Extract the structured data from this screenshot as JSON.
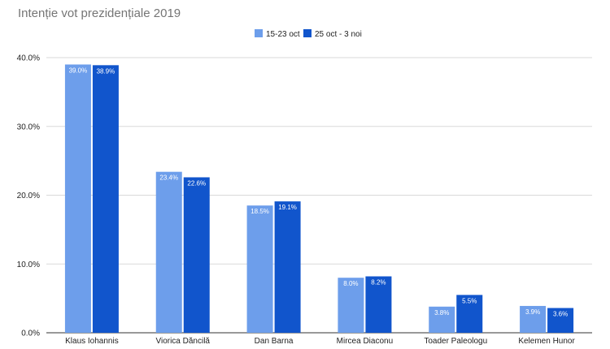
{
  "chart_data": {
    "type": "bar",
    "title": "Intenție vot prezidențiale 2019",
    "xlabel": "",
    "ylabel": "",
    "categories": [
      "Klaus Iohannis",
      "Viorica Dăncilă",
      "Dan Barna",
      "Mircea Diaconu",
      "Toader Paleologu",
      "Kelemen Hunor"
    ],
    "series": [
      {
        "name": "15-23 oct",
        "color": "#6d9eeb",
        "values": [
          39.0,
          23.4,
          18.5,
          8.0,
          3.8,
          3.9
        ],
        "labels": [
          "39.0%",
          "23.4%",
          "18.5%",
          "8.0%",
          "3.8%",
          "3.9%"
        ]
      },
      {
        "name": "25 oct - 3 noi",
        "color": "#1155cc",
        "values": [
          38.9,
          22.6,
          19.1,
          8.2,
          5.5,
          3.6
        ],
        "labels": [
          "38.9%",
          "22.6%",
          "19.1%",
          "8.2%",
          "5.5%",
          "3.6%"
        ]
      }
    ],
    "ylim": [
      0,
      40
    ],
    "yticks": [
      0,
      10,
      20,
      30,
      40
    ],
    "ytick_labels": [
      "0.0%",
      "10.0%",
      "20.0%",
      "30.0%",
      "40.0%"
    ],
    "grid": true,
    "legend_position": "top-center"
  }
}
